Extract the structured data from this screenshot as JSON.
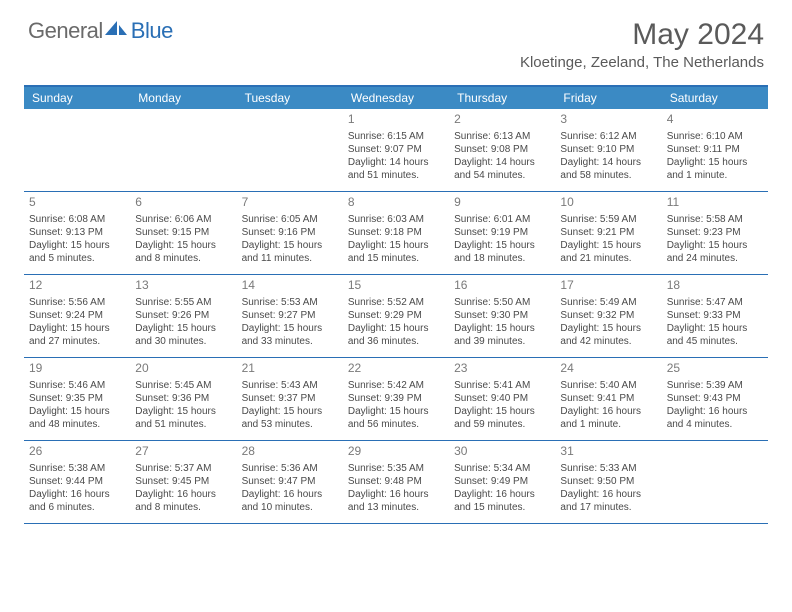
{
  "logo": {
    "text1": "General",
    "text2": "Blue"
  },
  "title": "May 2024",
  "location": "Kloetinge, Zeeland, The Netherlands",
  "brand_color": "#2a6fb5",
  "header_bg": "#3b8ac4",
  "text_color": "#5a5a5a",
  "cell_text_color": "#4a4a4a",
  "day_headers": [
    "Sunday",
    "Monday",
    "Tuesday",
    "Wednesday",
    "Thursday",
    "Friday",
    "Saturday"
  ],
  "weeks": [
    [
      null,
      null,
      null,
      {
        "n": "1",
        "sr": "6:15 AM",
        "ss": "9:07 PM",
        "dl": "14 hours and 51 minutes."
      },
      {
        "n": "2",
        "sr": "6:13 AM",
        "ss": "9:08 PM",
        "dl": "14 hours and 54 minutes."
      },
      {
        "n": "3",
        "sr": "6:12 AM",
        "ss": "9:10 PM",
        "dl": "14 hours and 58 minutes."
      },
      {
        "n": "4",
        "sr": "6:10 AM",
        "ss": "9:11 PM",
        "dl": "15 hours and 1 minute."
      }
    ],
    [
      {
        "n": "5",
        "sr": "6:08 AM",
        "ss": "9:13 PM",
        "dl": "15 hours and 5 minutes."
      },
      {
        "n": "6",
        "sr": "6:06 AM",
        "ss": "9:15 PM",
        "dl": "15 hours and 8 minutes."
      },
      {
        "n": "7",
        "sr": "6:05 AM",
        "ss": "9:16 PM",
        "dl": "15 hours and 11 minutes."
      },
      {
        "n": "8",
        "sr": "6:03 AM",
        "ss": "9:18 PM",
        "dl": "15 hours and 15 minutes."
      },
      {
        "n": "9",
        "sr": "6:01 AM",
        "ss": "9:19 PM",
        "dl": "15 hours and 18 minutes."
      },
      {
        "n": "10",
        "sr": "5:59 AM",
        "ss": "9:21 PM",
        "dl": "15 hours and 21 minutes."
      },
      {
        "n": "11",
        "sr": "5:58 AM",
        "ss": "9:23 PM",
        "dl": "15 hours and 24 minutes."
      }
    ],
    [
      {
        "n": "12",
        "sr": "5:56 AM",
        "ss": "9:24 PM",
        "dl": "15 hours and 27 minutes."
      },
      {
        "n": "13",
        "sr": "5:55 AM",
        "ss": "9:26 PM",
        "dl": "15 hours and 30 minutes."
      },
      {
        "n": "14",
        "sr": "5:53 AM",
        "ss": "9:27 PM",
        "dl": "15 hours and 33 minutes."
      },
      {
        "n": "15",
        "sr": "5:52 AM",
        "ss": "9:29 PM",
        "dl": "15 hours and 36 minutes."
      },
      {
        "n": "16",
        "sr": "5:50 AM",
        "ss": "9:30 PM",
        "dl": "15 hours and 39 minutes."
      },
      {
        "n": "17",
        "sr": "5:49 AM",
        "ss": "9:32 PM",
        "dl": "15 hours and 42 minutes."
      },
      {
        "n": "18",
        "sr": "5:47 AM",
        "ss": "9:33 PM",
        "dl": "15 hours and 45 minutes."
      }
    ],
    [
      {
        "n": "19",
        "sr": "5:46 AM",
        "ss": "9:35 PM",
        "dl": "15 hours and 48 minutes."
      },
      {
        "n": "20",
        "sr": "5:45 AM",
        "ss": "9:36 PM",
        "dl": "15 hours and 51 minutes."
      },
      {
        "n": "21",
        "sr": "5:43 AM",
        "ss": "9:37 PM",
        "dl": "15 hours and 53 minutes."
      },
      {
        "n": "22",
        "sr": "5:42 AM",
        "ss": "9:39 PM",
        "dl": "15 hours and 56 minutes."
      },
      {
        "n": "23",
        "sr": "5:41 AM",
        "ss": "9:40 PM",
        "dl": "15 hours and 59 minutes."
      },
      {
        "n": "24",
        "sr": "5:40 AM",
        "ss": "9:41 PM",
        "dl": "16 hours and 1 minute."
      },
      {
        "n": "25",
        "sr": "5:39 AM",
        "ss": "9:43 PM",
        "dl": "16 hours and 4 minutes."
      }
    ],
    [
      {
        "n": "26",
        "sr": "5:38 AM",
        "ss": "9:44 PM",
        "dl": "16 hours and 6 minutes."
      },
      {
        "n": "27",
        "sr": "5:37 AM",
        "ss": "9:45 PM",
        "dl": "16 hours and 8 minutes."
      },
      {
        "n": "28",
        "sr": "5:36 AM",
        "ss": "9:47 PM",
        "dl": "16 hours and 10 minutes."
      },
      {
        "n": "29",
        "sr": "5:35 AM",
        "ss": "9:48 PM",
        "dl": "16 hours and 13 minutes."
      },
      {
        "n": "30",
        "sr": "5:34 AM",
        "ss": "9:49 PM",
        "dl": "16 hours and 15 minutes."
      },
      {
        "n": "31",
        "sr": "5:33 AM",
        "ss": "9:50 PM",
        "dl": "16 hours and 17 minutes."
      },
      null
    ]
  ]
}
